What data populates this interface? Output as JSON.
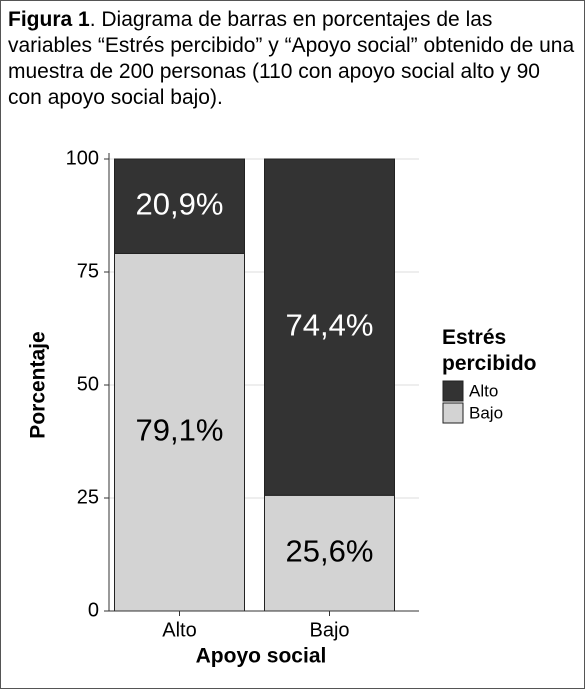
{
  "chart_data": {
    "type": "stacked_bar",
    "title_label": "Figura 1",
    "title": ". Diagrama de barras en porcentajes de las variables “Estrés percibido” y “Apoyo social” obtenido de una muestra de 200 personas (110 con apoyo social alto y 90 con apoyo social bajo).",
    "categories": [
      "Alto",
      "Bajo"
    ],
    "x_label": "Apoyo social",
    "y_label": "Porcentaje",
    "legend_title": "Estrés percibido",
    "series": [
      {
        "name": "Alto",
        "color": "#333333",
        "values": [
          20.9,
          74.4
        ],
        "value_labels": [
          "20,9%",
          "74,4%"
        ]
      },
      {
        "name": "Bajo",
        "color": "#d3d3d3",
        "values": [
          79.1,
          25.6
        ],
        "value_labels": [
          "79,1%",
          "25,6%"
        ]
      }
    ],
    "ylim": [
      0,
      100
    ],
    "yticks": [
      0,
      25,
      50,
      75,
      100
    ],
    "grid": true,
    "legend": "right"
  }
}
